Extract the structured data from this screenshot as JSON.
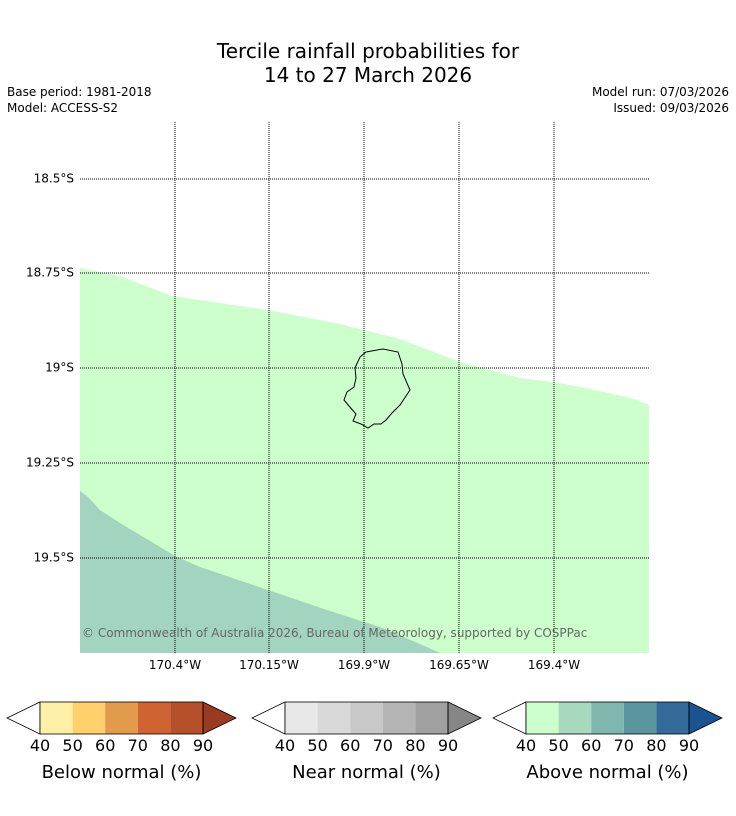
{
  "title": {
    "line1": "Tercile rainfall probabilities for",
    "line2": "14 to 27 March 2026"
  },
  "meta": {
    "base_period": "Base period: 1981-2018",
    "model": "Model: ACCESS-S2",
    "model_run": "Model run: 07/03/2026",
    "issued": "Issued: 09/03/2026"
  },
  "map": {
    "lat_labels": [
      "18.5°S",
      "18.75°S",
      "19°S",
      "19.25°S",
      "19.5°S"
    ],
    "lon_labels": [
      "170.4°W",
      "170.15°W",
      "169.9°W",
      "169.65°W",
      "169.4°W"
    ],
    "copyright": "© Commonwealth of Australia 2026, Bureau of Meteorology, supported by COSPPac",
    "region_colors": {
      "above_40_50": "#ccffcc",
      "above_50_60": "#a2d4bf"
    }
  },
  "legends": [
    {
      "title": "Below normal (%)",
      "ticks": [
        "40",
        "50",
        "60",
        "70",
        "80",
        "90"
      ],
      "colors": [
        "#fff0a8",
        "#ffd06b",
        "#e29a4b",
        "#cf6432",
        "#b5502a",
        "#9a3a21"
      ]
    },
    {
      "title": "Near normal (%)",
      "ticks": [
        "40",
        "50",
        "60",
        "70",
        "80",
        "90"
      ],
      "colors": [
        "#e8e8e8",
        "#d9d9d9",
        "#c8c8c8",
        "#b4b4b4",
        "#a0a0a0",
        "#868686"
      ]
    },
    {
      "title": "Above normal (%)",
      "ticks": [
        "40",
        "50",
        "60",
        "70",
        "80",
        "90"
      ],
      "colors": [
        "#ccffcc",
        "#a6d9bd",
        "#7fb7ae",
        "#5b95a0",
        "#346a9a",
        "#1a5390"
      ]
    }
  ]
}
